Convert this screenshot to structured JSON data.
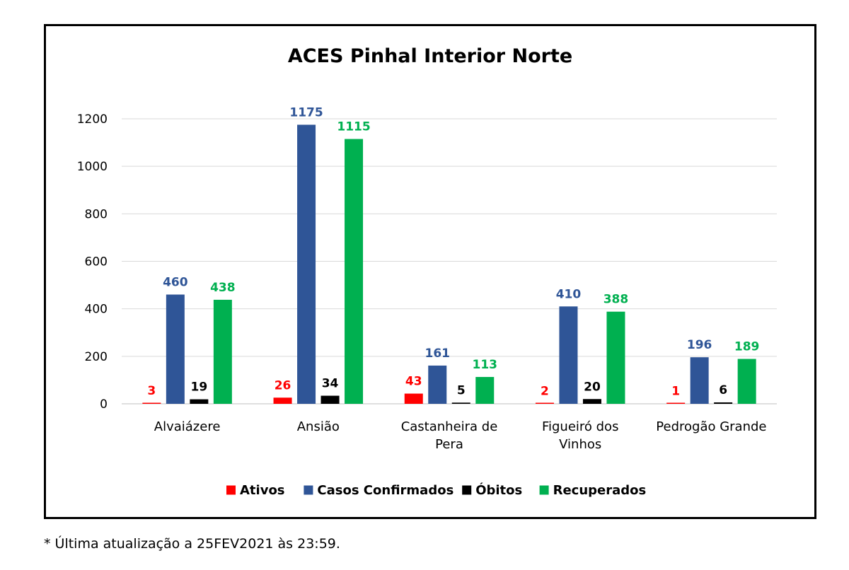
{
  "chart_data": {
    "type": "bar",
    "title": "ACES Pinhal Interior Norte",
    "xlabel": "",
    "ylabel": "",
    "ylim": [
      0,
      1200
    ],
    "yticks": [
      0,
      200,
      400,
      600,
      800,
      1000,
      1200
    ],
    "grid": true,
    "legend_position": "bottom",
    "categories": [
      [
        "Alvaiázere"
      ],
      [
        "Ansião"
      ],
      [
        "Castanheira de",
        "Pera"
      ],
      [
        "Figueiró dos",
        "Vinhos"
      ],
      [
        "Pedrogão Grande"
      ]
    ],
    "series": [
      {
        "name": "Ativos",
        "color": "#ff0000",
        "label_color": "#ff0000",
        "values": [
          3,
          26,
          43,
          2,
          1
        ]
      },
      {
        "name": "Casos Confirmados",
        "color": "#2f5597",
        "label_color": "#2f5597",
        "values": [
          460,
          1175,
          161,
          410,
          196
        ]
      },
      {
        "name": "Óbitos",
        "color": "#000000",
        "label_color": "#000000",
        "values": [
          19,
          34,
          5,
          20,
          6
        ]
      },
      {
        "name": "Recuperados",
        "color": "#00b050",
        "label_color": "#00b050",
        "values": [
          438,
          1115,
          113,
          388,
          189
        ]
      }
    ]
  },
  "footnote": "* Última atualização a 25FEV2021 às 23:59."
}
